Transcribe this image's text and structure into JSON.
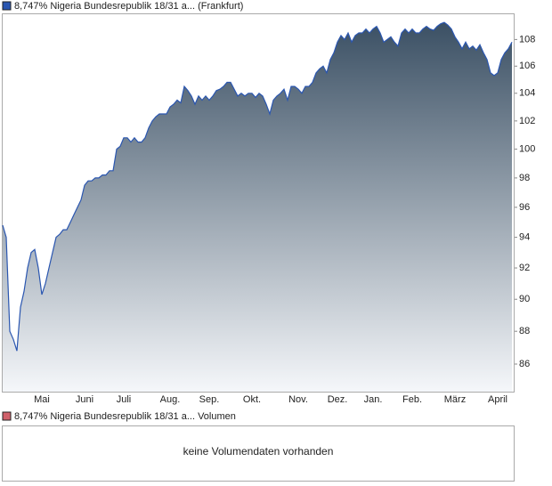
{
  "chart_data": [
    {
      "type": "area",
      "series": [
        {
          "name": "8,747% Nigeria Bundesrepublik 18/31 a... (Frankfurt)",
          "color": "#2a56b0",
          "values": [
            94.8,
            94,
            88,
            87.5,
            86.8,
            89.5,
            90.5,
            92,
            93,
            93.2,
            92,
            90.3,
            91,
            92,
            93,
            94,
            94.2,
            94.5,
            94.5,
            95,
            95.5,
            96,
            96.5,
            97.5,
            97.8,
            97.8,
            98,
            98,
            98.2,
            98.2,
            98.5,
            98.5,
            100,
            100.2,
            100.8,
            100.8,
            100.5,
            100.8,
            100.5,
            100.5,
            100.8,
            101.5,
            102,
            102.3,
            102.5,
            102.5,
            102.5,
            103,
            103.2,
            103.5,
            103.3,
            104.5,
            104.2,
            103.8,
            103.2,
            103.8,
            103.5,
            103.8,
            103.5,
            103.8,
            104.2,
            104.3,
            104.5,
            104.8,
            104.8,
            104.3,
            103.8,
            104,
            103.8,
            104,
            104,
            103.7,
            104,
            103.8,
            103.2,
            102.5,
            103.5,
            103.8,
            104,
            104.3,
            103.5,
            104.5,
            104.5,
            104.3,
            104,
            104.5,
            104.5,
            104.8,
            105.5,
            105.8,
            106,
            105.5,
            106.5,
            107,
            107.8,
            108.3,
            108,
            108.5,
            107.8,
            108.3,
            108.5,
            108.5,
            108.8,
            108.5,
            108.8,
            109,
            108.5,
            107.8,
            108,
            108.2,
            107.8,
            107.5,
            108.5,
            108.8,
            108.5,
            108.8,
            108.5,
            108.5,
            108.8,
            109,
            108.8,
            108.7,
            109,
            109.2,
            109.3,
            109.1,
            108.8,
            108.2,
            107.8,
            107.3,
            107.8,
            107.3,
            107.5,
            107.2,
            107.6,
            107,
            106.5,
            105.5,
            105.3,
            105.5,
            106.5,
            107,
            107.3,
            107.8
          ]
        }
      ],
      "categories": [
        null,
        null,
        null,
        null,
        null,
        null,
        null,
        null,
        null,
        null,
        null,
        "Mai",
        null,
        null,
        null,
        null,
        null,
        null,
        null,
        null,
        null,
        null,
        null,
        "Juni",
        null,
        null,
        null,
        null,
        null,
        null,
        null,
        null,
        null,
        null,
        "Juli",
        null,
        null,
        null,
        null,
        null,
        null,
        null,
        null,
        null,
        null,
        null,
        null,
        "Aug.",
        null,
        null,
        null,
        null,
        null,
        null,
        null,
        null,
        null,
        null,
        "Sep.",
        null,
        null,
        null,
        null,
        null,
        null,
        null,
        null,
        null,
        null,
        null,
        "Okt.",
        null,
        null,
        null,
        null,
        null,
        null,
        null,
        null,
        null,
        null,
        null,
        null,
        "Nov.",
        null,
        null,
        null,
        null,
        null,
        null,
        null,
        null,
        null,
        null,
        "Dez.",
        null,
        null,
        null,
        null,
        null,
        null,
        null,
        null,
        null,
        "Jan.",
        null,
        null,
        null,
        null,
        null,
        null,
        null,
        null,
        null,
        null,
        "Feb.",
        null,
        null,
        null,
        null,
        null,
        null,
        null,
        null,
        null,
        null,
        null,
        "März",
        null,
        null,
        null,
        null,
        null,
        null,
        null,
        null,
        null,
        null,
        null,
        "April",
        null,
        null,
        null,
        null
      ],
      "ylim": [
        84.35,
        110
      ],
      "yticks": [
        86,
        88,
        90,
        92,
        94,
        96,
        98,
        100,
        102,
        104,
        106,
        108
      ],
      "log": true,
      "fill_colors": [
        "#3b5064",
        "#f5f7fa"
      ]
    },
    {
      "type": "bar",
      "series": [
        {
          "name": "8,747% Nigeria Bundesrepublik 18/31 a... Volumen",
          "color": "#d0606a"
        }
      ],
      "annotation": "keine Volumendaten vorhanden"
    }
  ]
}
